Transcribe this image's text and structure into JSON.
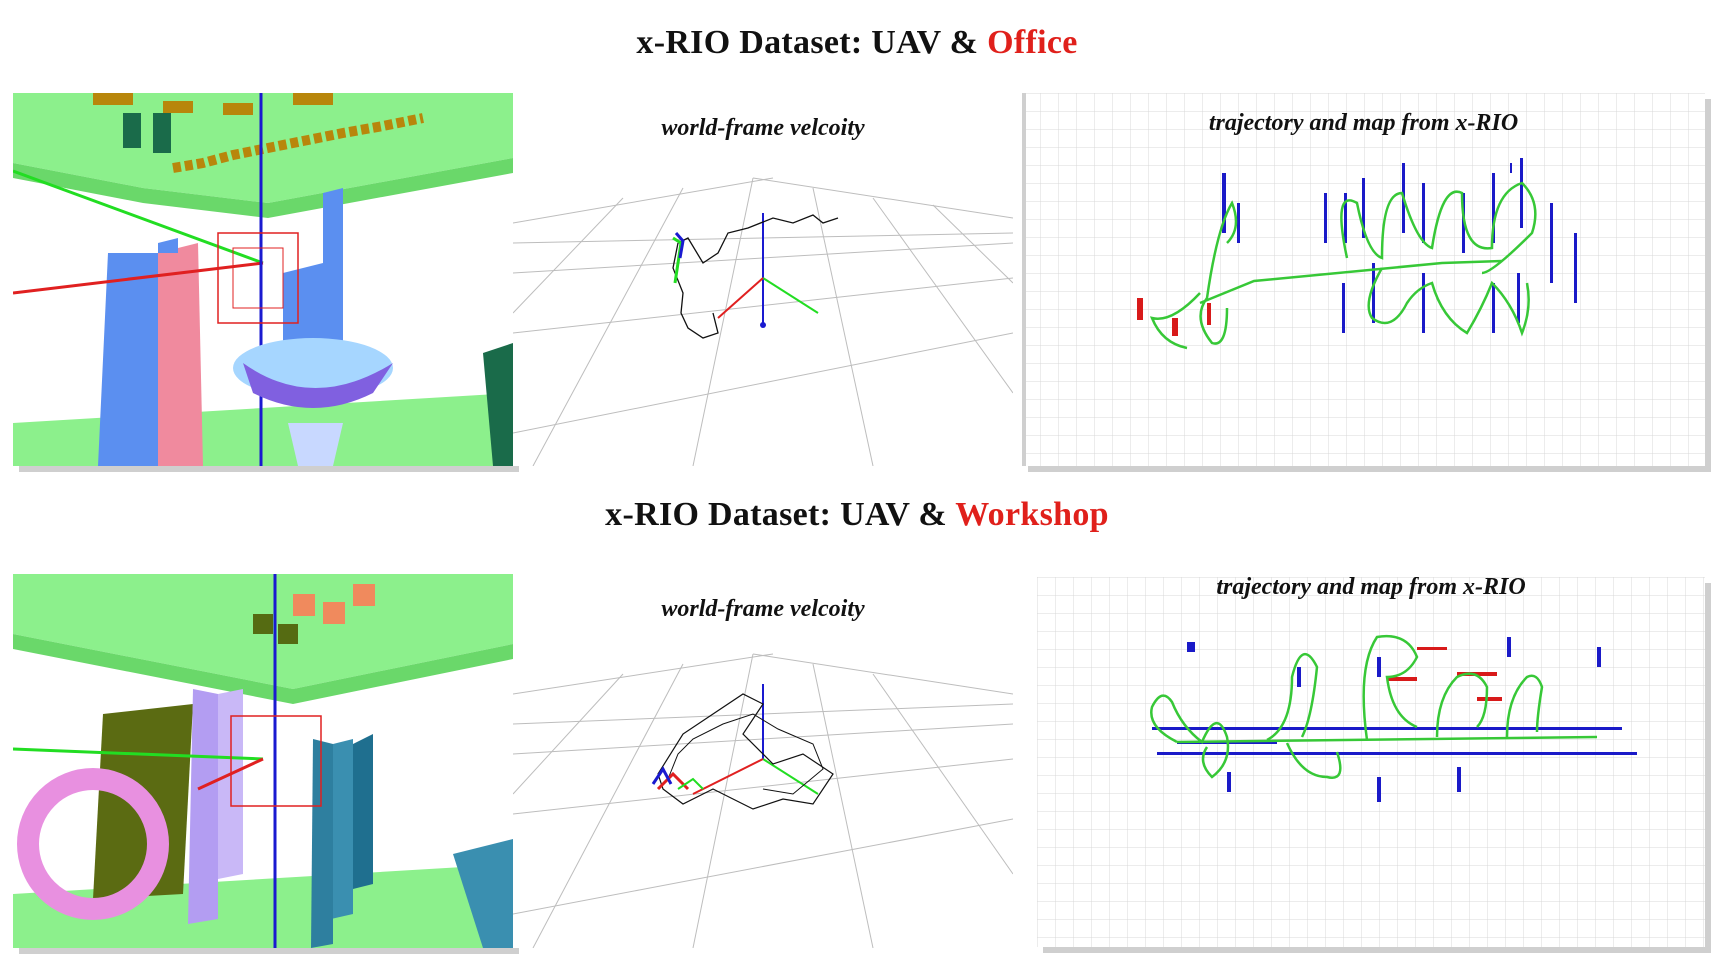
{
  "rows": [
    {
      "title_prefix": "x-RIO Dataset: UAV & ",
      "title_highlight": "Office",
      "velocity_caption": "world-frame velcoity",
      "map_caption": "trajectory and map from x-RIO"
    },
    {
      "title_prefix": "x-RIO Dataset: UAV & ",
      "title_highlight": "Workshop",
      "velocity_caption": "world-frame velcoity",
      "map_caption": "trajectory and map from x-RIO"
    }
  ],
  "colors": {
    "highlight": "#e0201b",
    "trajectory": "#37c837",
    "map_points": "#1a1ac8",
    "map_points_alt": "#d81a1a",
    "floor_green": "#8cf08c",
    "axis_blue": "#1a1ad0"
  }
}
